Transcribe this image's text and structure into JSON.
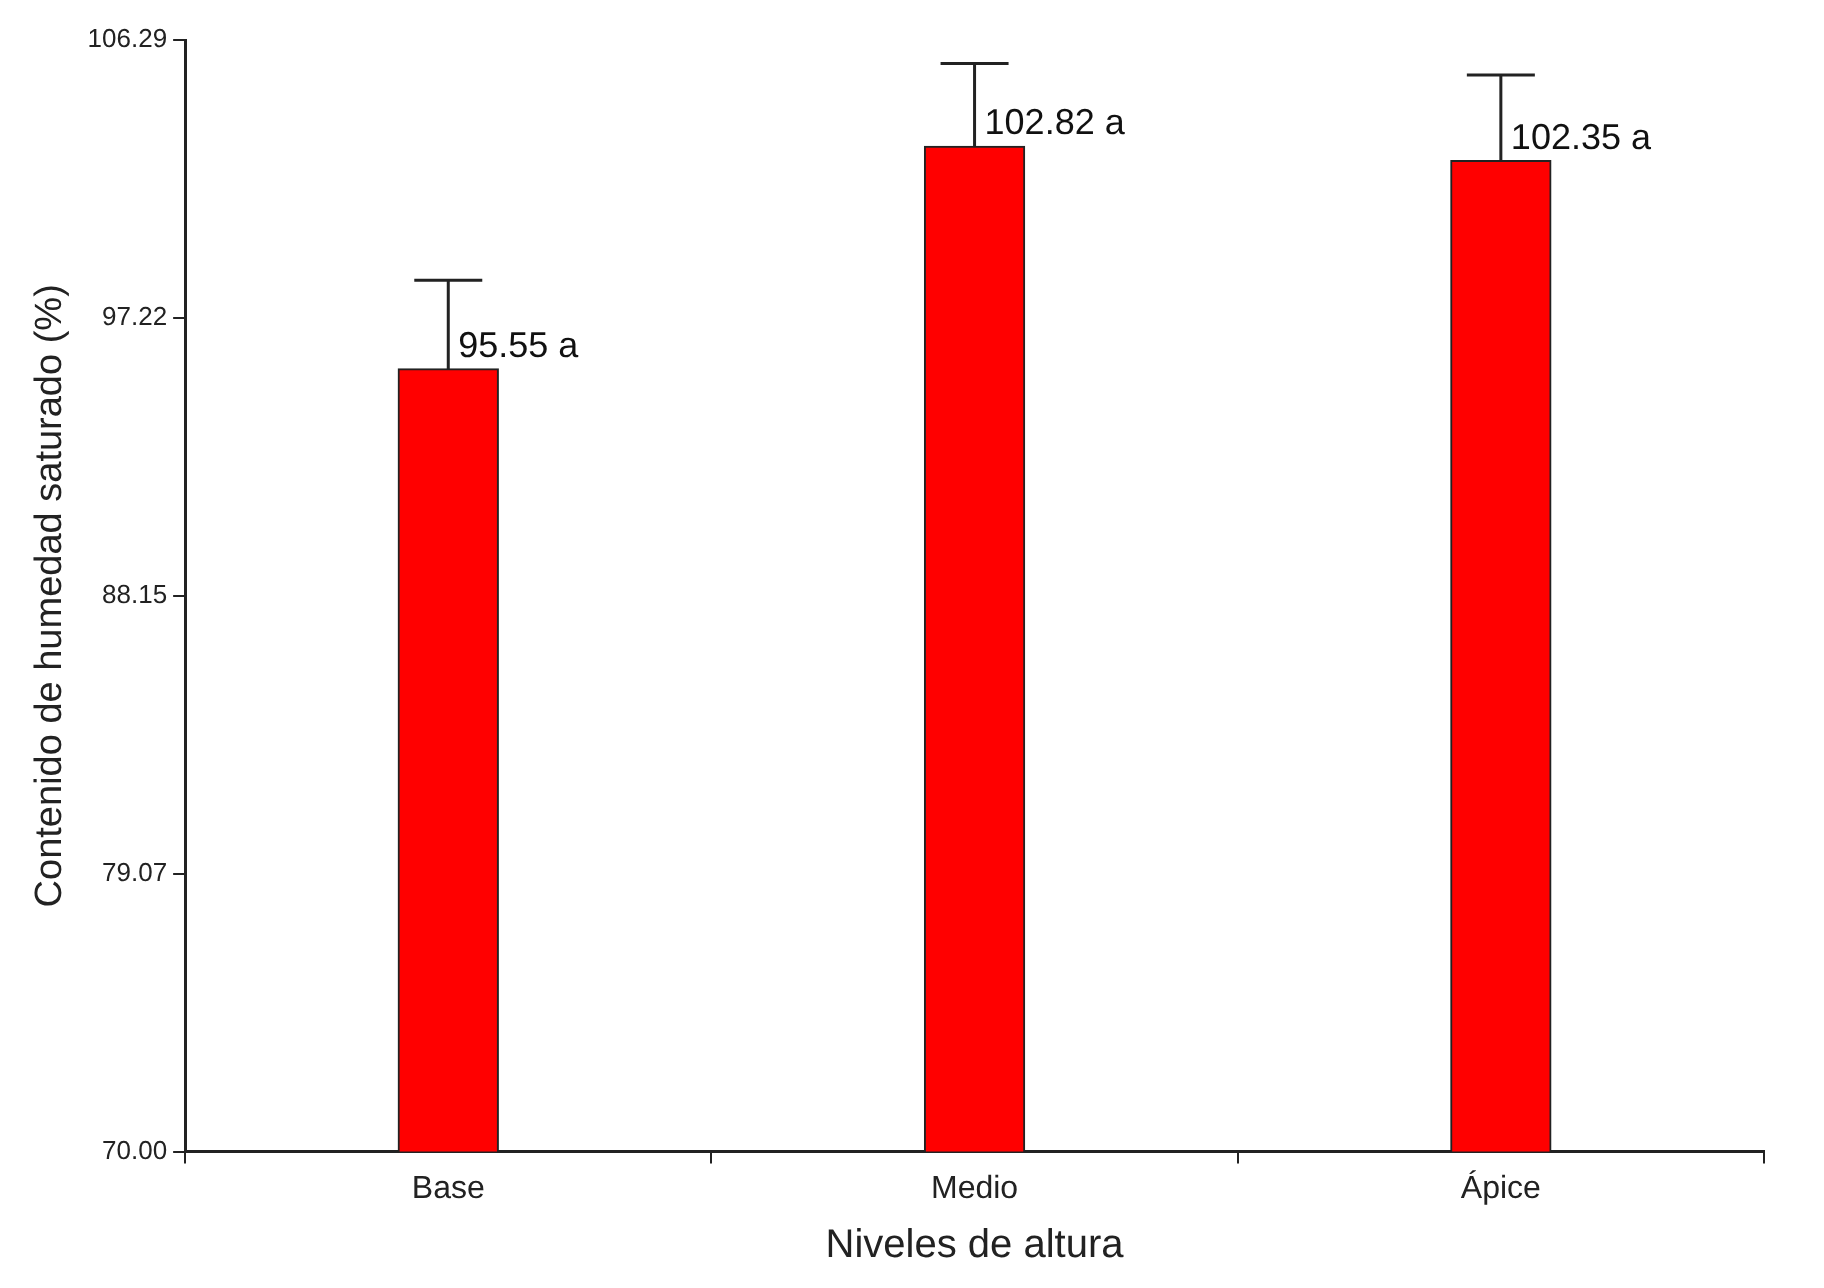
{
  "chart_data": {
    "type": "bar",
    "xlabel": "Niveles de altura",
    "ylabel": "Contenido de humedad saturado (%)",
    "categories": [
      "Base",
      "Medio",
      "Ápice"
    ],
    "values": [
      95.55,
      102.82,
      102.35
    ],
    "value_labels": [
      "95.55 a",
      "102.82 a",
      "102.35 a"
    ],
    "errors": [
      [
        95.55,
        98.45
      ],
      [
        102.82,
        105.52
      ],
      [
        102.35,
        105.15
      ]
    ],
    "color": "#ff0000",
    "ylim": [
      70,
      106.29
    ],
    "yticks": [
      {
        "value": 70,
        "label": "70.00"
      },
      {
        "value": 79.07,
        "label": "79.07"
      },
      {
        "value": 88.15,
        "label": "88.15"
      },
      {
        "value": 97.22,
        "label": "97.22"
      },
      {
        "value": 106.29,
        "label": "106.29"
      }
    ],
    "grid": false,
    "legend": false
  }
}
